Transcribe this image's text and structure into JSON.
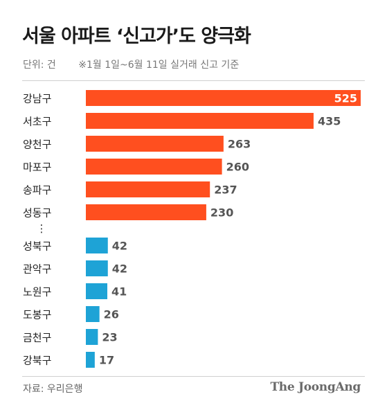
{
  "title": "서울 아파트 ‘신고가’도 양극화",
  "unit_label": "단위: 건",
  "note": "※1월 1일~6월 11일 실거래 신고 기준",
  "source": "자료: 우리은행",
  "logo_text": "The JoongAng",
  "colors": {
    "top_group": "#ff4f1f",
    "bottom_group": "#1ea3d6",
    "value_text_dark": "#555555",
    "value_text_light": "#ffffff"
  },
  "chart_data": {
    "type": "bar",
    "orientation": "horizontal",
    "title": "서울 아파트 ‘신고가’도 양극화",
    "unit": "단위: 건",
    "xlim": [
      0,
      525
    ],
    "grid": false,
    "groups": [
      {
        "color": "#ff4f1f",
        "categories": [
          "강남구",
          "서초구",
          "양천구",
          "마포구",
          "송파구",
          "성동구"
        ],
        "values": [
          525,
          435,
          263,
          260,
          237,
          230
        ]
      },
      {
        "color": "#1ea3d6",
        "categories": [
          "성북구",
          "관악구",
          "노원구",
          "도봉구",
          "금천구",
          "강북구"
        ],
        "values": [
          42,
          42,
          41,
          26,
          23,
          17
        ]
      }
    ],
    "gap_marker": "⋮"
  }
}
